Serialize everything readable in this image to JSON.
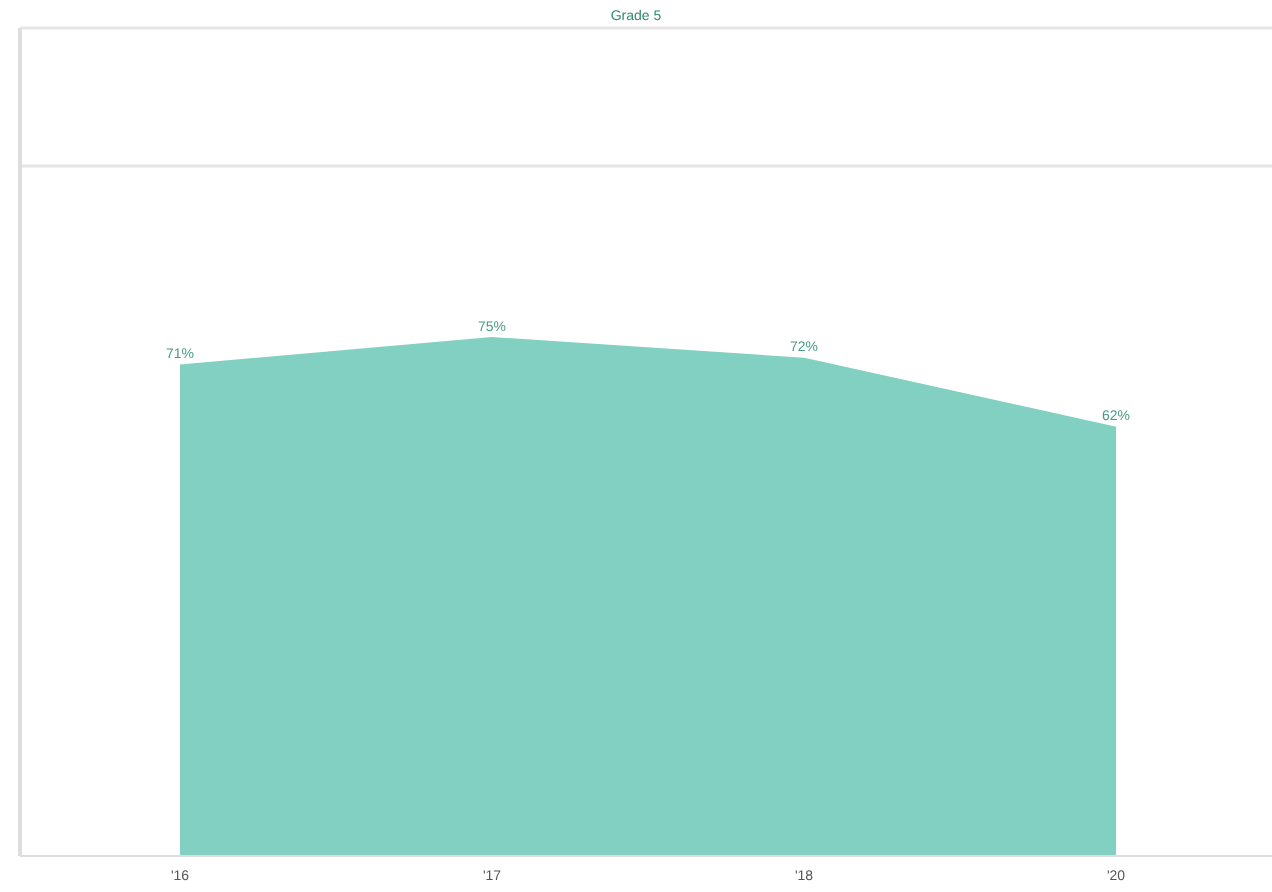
{
  "chart_data": {
    "type": "area",
    "title": "Grade 5",
    "categories": [
      "'16",
      "'17",
      "'18",
      "'20"
    ],
    "series": [
      {
        "color": "#82d0c1",
        "values": [
          71,
          75,
          72,
          62
        ],
        "value_labels": [
          "71%",
          "75%",
          "72%",
          "62%"
        ]
      }
    ],
    "ylim": [
      0,
      120
    ],
    "tick_labels": "x",
    "ref_lines": [
      {
        "axis": "y",
        "value": 100,
        "color": "#e6e6e6"
      },
      {
        "axis": "y",
        "value": 120,
        "color": "#e6e6e6"
      }
    ]
  }
}
